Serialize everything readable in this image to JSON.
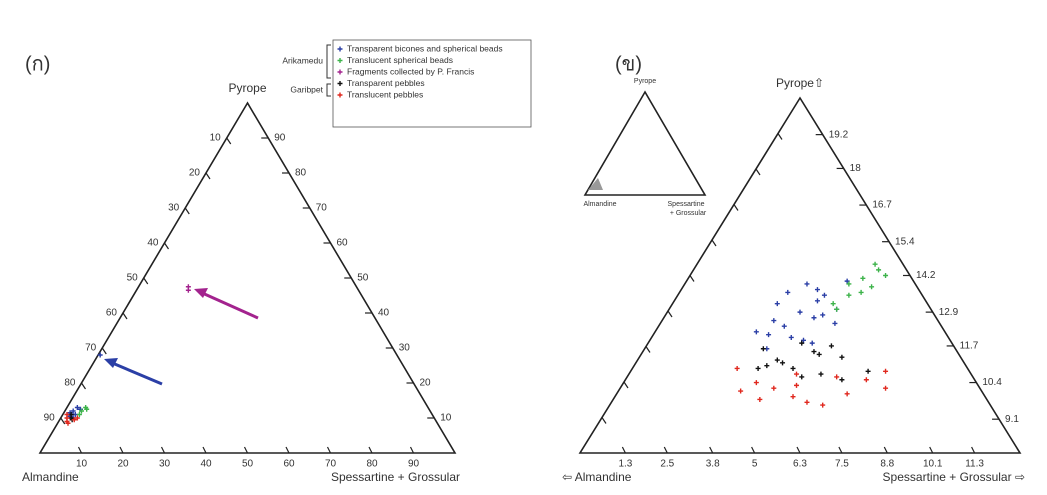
{
  "chart_data": [
    {
      "type": "ternary",
      "label": "(ก)",
      "apex_label": "Pyrope",
      "left_label": "Almandine",
      "right_label": "Spessartine + Grossular",
      "pyrope_lim": [
        0,
        100
      ],
      "sg_lim": [
        0,
        100
      ],
      "almandine_lim": [
        0,
        100
      ],
      "almandine_ticks": [
        10,
        20,
        30,
        40,
        50,
        60,
        70,
        80,
        90
      ],
      "pyrope_ticks": [
        10,
        20,
        30,
        40,
        50,
        60,
        70,
        80,
        90
      ],
      "sg_ticks": [
        10,
        20,
        30,
        40,
        50,
        60,
        70,
        80,
        90
      ],
      "legend_groups": [
        "Arikamedu",
        "Garibpet"
      ],
      "series": [
        {
          "name": "Transparent bicones and spherical beads",
          "color": "#2b3fa6",
          "pyrope": [
            28,
            12,
            11,
            13,
            10.5,
            12.5,
            11.5,
            10
          ],
          "sg": [
            0.5,
            2,
            3,
            2.5,
            2,
            3.5,
            1.5,
            3
          ]
        },
        {
          "name": "Translucent spherical beads",
          "color": "#3db34a",
          "pyrope": [
            12,
            13,
            11,
            12.5
          ],
          "sg": [
            4,
            4.5,
            4,
            5
          ]
        },
        {
          "name": "Fragments collected by P. Francis",
          "color": "#a3238e",
          "pyrope": [
            46.5,
            47.5
          ],
          "sg": [
            12.5,
            12
          ]
        },
        {
          "name": "Transparent pebbles",
          "color": "#111111",
          "pyrope": [
            10,
            11,
            9.5
          ],
          "sg": [
            2.5,
            2,
            3
          ]
        },
        {
          "name": "Translucent pebbles",
          "color": "#e0281e",
          "pyrope": [
            9,
            10,
            9.5,
            11,
            8.5,
            10
          ],
          "sg": [
            2,
            1.5,
            3.5,
            1,
            2.5,
            4
          ]
        }
      ]
    },
    {
      "type": "ternary",
      "label": "(ข)",
      "apex_label": "Pyrope⇧",
      "left_label": "⇦ Almandine",
      "right_label": "Spessartine + Grossular ⇨",
      "pyrope_lim": [
        7.9,
        20.5
      ],
      "sg_lim": [
        0,
        12.6
      ],
      "pyrope_ticks": [
        9.1,
        10.4,
        11.7,
        12.9,
        14.2,
        15.4,
        16.7,
        18.0,
        19.2
      ],
      "sg_ticks": [
        1.3,
        2.5,
        3.8,
        5.0,
        6.3,
        7.5,
        8.8,
        10.1,
        11.3
      ],
      "inset": {
        "apex_label": "Pyrope",
        "left_label": "Almandine",
        "right_label": [
          "Spessartine",
          "+ Grossular"
        ]
      },
      "series": [
        {
          "color": "#2b3fa6",
          "pyrope": [
            13.9,
            13.5,
            13.2,
            12.8,
            12.4,
            12.0,
            13.0,
            12.6,
            11.9,
            13.7,
            12.2,
            14.0,
            12.9,
            11.6,
            13.3,
            12.5,
            12.1,
            13.6,
            11.8,
            12.7
          ],
          "sg": [
            3.5,
            4.2,
            3.0,
            4.5,
            3.6,
            4.0,
            4.8,
            3.2,
            4.4,
            3.9,
            2.9,
            4.6,
            3.8,
            3.5,
            4.1,
            5.0,
            3.3,
            3.1,
            4.7,
            4.3
          ]
        },
        {
          "color": "#3db34a",
          "pyrope": [
            14.4,
            14.1,
            13.8,
            13.5,
            13.2,
            14.6,
            13.9,
            13.0,
            14.2,
            13.6
          ],
          "sg": [
            5.3,
            5.0,
            5.4,
            4.9,
            4.6,
            5.1,
            4.7,
            4.8,
            5.6,
            5.2
          ]
        },
        {
          "color": "#111111",
          "pyrope": [
            11.6,
            11.2,
            10.9,
            11.4,
            10.7,
            11.0,
            11.8,
            10.5,
            11.3,
            10.8,
            11.5,
            10.6,
            11.1,
            10.9,
            11.7
          ],
          "sg": [
            3.4,
            4.0,
            4.6,
            5.1,
            5.5,
            3.8,
            4.4,
            6.2,
            5.8,
            6.8,
            4.9,
            5.0,
            4.2,
            3.6,
            5.3
          ]
        },
        {
          "color": "#e0281e",
          "pyrope": [
            10.9,
            10.4,
            9.9,
            10.2,
            10.6,
            9.7,
            10.0,
            10.8,
            10.3,
            9.8,
            10.5,
            10.1,
            9.6,
            10.7,
            10.2
          ],
          "sg": [
            3.0,
            3.8,
            5.1,
            4.4,
            6.0,
            5.6,
            6.6,
            7.3,
            5.0,
            4.2,
            6.9,
            3.5,
            6.1,
            4.8,
            7.6
          ]
        }
      ]
    }
  ]
}
